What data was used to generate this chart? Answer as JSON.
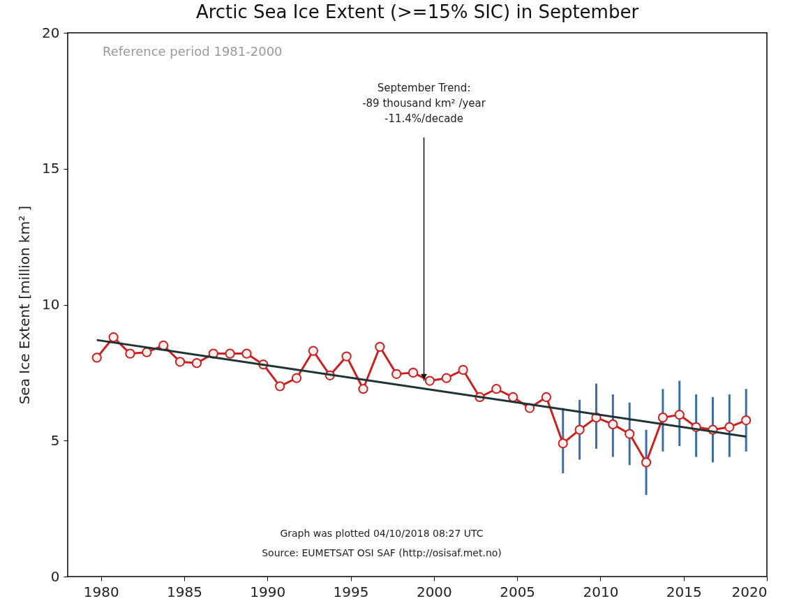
{
  "chart_data": {
    "type": "line",
    "title": "Arctic Sea Ice Extent (>=15% SIC) in September",
    "ylabel": "Sea Ice Extent [million km² ]",
    "xlim": [
      1978,
      2020
    ],
    "xticks": [
      1980,
      1985,
      1990,
      1995,
      2000,
      2005,
      2010,
      2015,
      2020
    ],
    "ylim": [
      0,
      20
    ],
    "yticks": [
      0,
      5,
      10,
      15,
      20
    ],
    "grid": false,
    "marker": "circle",
    "line_style": "solid",
    "series": [
      {
        "color": "#cc2020",
        "x": [
          1979.75,
          1980.75,
          1981.75,
          1982.75,
          1983.75,
          1984.75,
          1985.75,
          1986.75,
          1987.75,
          1988.75,
          1989.75,
          1990.75,
          1991.75,
          1992.75,
          1993.75,
          1994.75,
          1995.75,
          1996.75,
          1997.75,
          1998.75,
          1999.75,
          2000.75,
          2001.75,
          2002.75,
          2003.75,
          2004.75,
          2005.75,
          2006.75,
          2007.75,
          2008.75,
          2009.75,
          2010.75,
          2011.75,
          2012.75,
          2013.75,
          2014.75,
          2015.75,
          2016.75,
          2017.75,
          2018.75
        ],
        "values": [
          8.05,
          8.8,
          8.2,
          8.25,
          8.5,
          7.9,
          7.85,
          8.2,
          8.2,
          8.2,
          7.8,
          7.0,
          7.3,
          8.3,
          7.4,
          8.1,
          6.9,
          8.45,
          7.45,
          7.5,
          7.2,
          7.3,
          7.6,
          6.6,
          6.9,
          6.6,
          6.2,
          6.6,
          4.9,
          5.4,
          5.85,
          5.6,
          5.25,
          4.2,
          5.85,
          5.95,
          5.5,
          5.4,
          5.5,
          5.75
        ],
        "errors": [
          null,
          null,
          null,
          null,
          null,
          null,
          null,
          null,
          null,
          null,
          null,
          null,
          null,
          null,
          null,
          null,
          null,
          null,
          null,
          null,
          null,
          null,
          null,
          null,
          null,
          null,
          null,
          null,
          [
            3.8,
            6.2
          ],
          [
            4.3,
            6.5
          ],
          [
            4.7,
            7.1
          ],
          [
            4.4,
            6.7
          ],
          [
            4.1,
            6.4
          ],
          [
            3.0,
            5.4
          ],
          [
            4.6,
            6.9
          ],
          [
            4.8,
            7.2
          ],
          [
            4.4,
            6.7
          ],
          [
            4.2,
            6.6
          ],
          [
            4.4,
            6.7
          ],
          [
            4.6,
            6.9
          ]
        ]
      },
      {
        "type": "line",
        "marker": "none",
        "color": "#1e3434",
        "x": [
          1979.75,
          2018.75
        ],
        "values": [
          8.7,
          5.15
        ]
      }
    ],
    "annotations": [
      "Reference period 1981-2000",
      {
        "text": "September Trend:\n-89 thousand km² /year\n-11.4%/decade",
        "x": 1999.4,
        "y": 7.2
      },
      "Graph was plotted 04/10/2018 08:27 UTC",
      "Source: EUMETSAT OSI SAF (http://osisaf.met.no)"
    ]
  }
}
